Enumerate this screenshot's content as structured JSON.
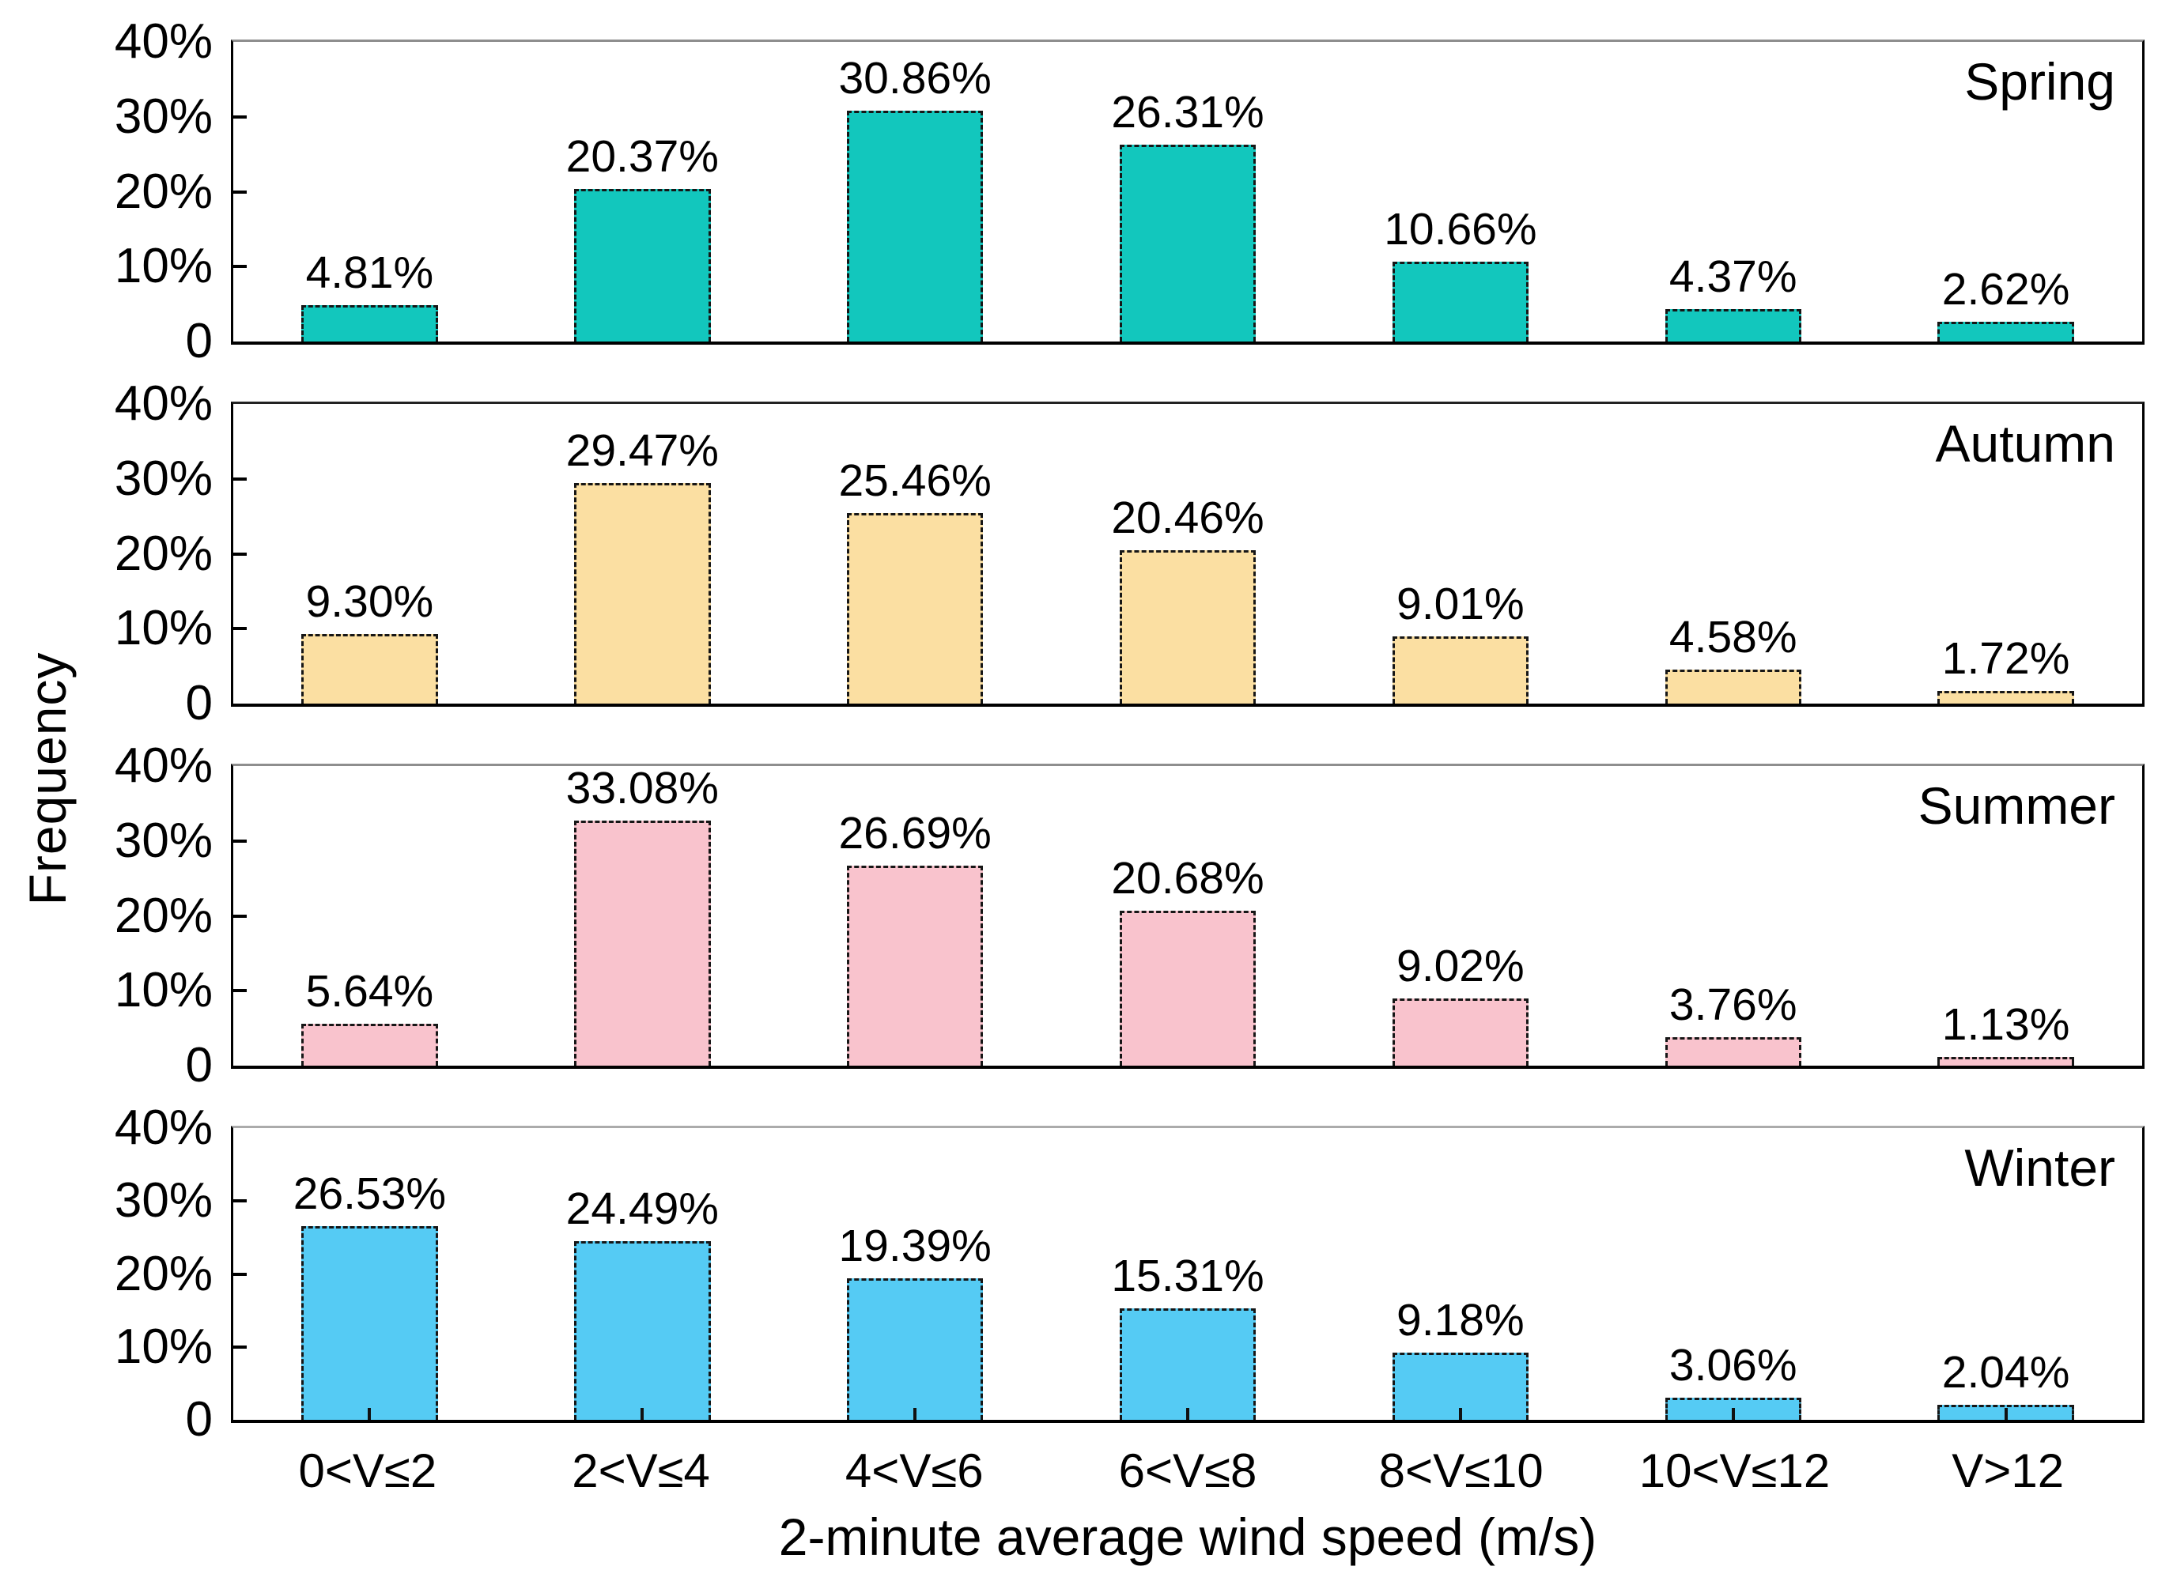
{
  "chart_data": {
    "type": "bar",
    "title": "",
    "xlabel": "2-minute average wind speed (m/s)",
    "ylabel": "Frequency",
    "ylim": [
      0,
      40
    ],
    "grid": false,
    "legend_position": "none",
    "ytick_labels": [
      "40%",
      "30%",
      "20%",
      "10%",
      "0"
    ],
    "categories": [
      "0<V≤2",
      "2<V≤4",
      "4<V≤6",
      "6<V≤8",
      "8<V≤10",
      "10<V≤12",
      "V>12"
    ],
    "panels": [
      {
        "season": "Spring",
        "color": "#12c7bd",
        "values": [
          4.81,
          20.37,
          30.86,
          26.31,
          10.66,
          4.37,
          2.62
        ],
        "labels": [
          "4.81%",
          "20.37%",
          "30.86%",
          "26.31%",
          "10.66%",
          "4.37%",
          "2.62%"
        ]
      },
      {
        "season": "Autumn",
        "color": "#fbdfa2",
        "values": [
          9.3,
          29.47,
          25.46,
          20.46,
          9.01,
          4.58,
          1.72
        ],
        "labels": [
          "9.30%",
          "29.47%",
          "25.46%",
          "20.46%",
          "9.01%",
          "4.58%",
          "1.72%"
        ]
      },
      {
        "season": "Summer",
        "color": "#f9c3cd",
        "values": [
          5.64,
          33.08,
          26.69,
          20.68,
          9.02,
          3.76,
          1.13
        ],
        "labels": [
          "5.64%",
          "33.08%",
          "26.69%",
          "20.68%",
          "9.02%",
          "3.76%",
          "1.13%"
        ]
      },
      {
        "season": "Winter",
        "color": "#55cbf4",
        "values": [
          26.53,
          24.49,
          19.39,
          15.31,
          9.18,
          3.06,
          2.04
        ],
        "labels": [
          "26.53%",
          "24.49%",
          "19.39%",
          "15.31%",
          "9.18%",
          "3.06%",
          "2.04%"
        ]
      }
    ]
  }
}
